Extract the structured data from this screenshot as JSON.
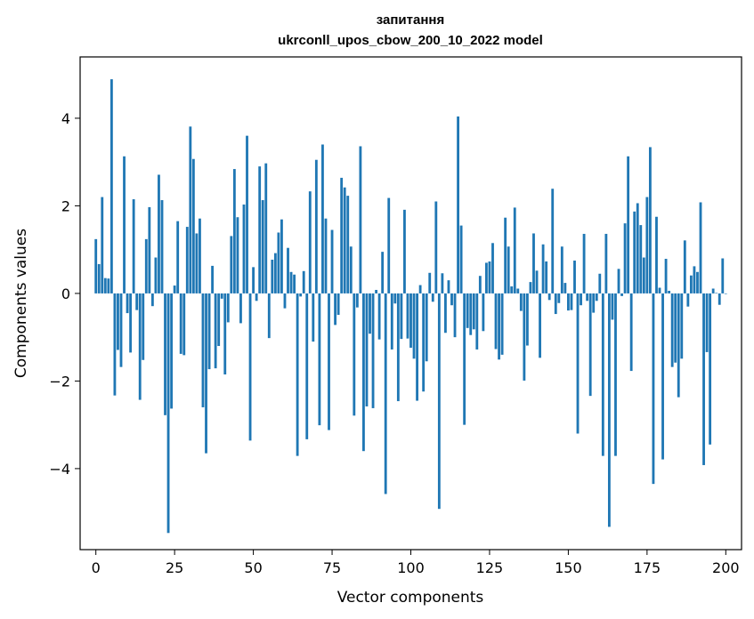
{
  "chart_data": {
    "type": "bar",
    "title": "запитання",
    "subtitle": "ukrconll_upos_cbow_200_10_2022 model",
    "xlabel": "Vector components",
    "ylabel": "Components values",
    "xlim": [
      -5,
      205
    ],
    "ylim": [
      -5.85,
      5.4
    ],
    "xticks": [
      0,
      25,
      50,
      75,
      100,
      125,
      150,
      175,
      200
    ],
    "xtick_labels": [
      "0",
      "25",
      "50",
      "75",
      "100",
      "125",
      "150",
      "175",
      "200"
    ],
    "yticks": [
      4,
      2,
      0,
      -2,
      -4
    ],
    "ytick_labels": [
      "4",
      "2",
      "0",
      "−2",
      "−4"
    ],
    "grid": false,
    "bar_color": "#1f77b4",
    "series": [
      {
        "values": [
          1.24,
          0.67,
          2.2,
          0.35,
          0.34,
          4.89,
          -2.33,
          -1.29,
          -1.68,
          3.13,
          -0.45,
          -1.35,
          2.15,
          -0.38,
          -2.43,
          -1.52,
          1.24,
          1.97,
          -0.29,
          0.82,
          2.71,
          2.13,
          -2.78,
          -5.47,
          -2.63,
          0.18,
          1.65,
          -1.38,
          -1.41,
          1.52,
          3.81,
          3.07,
          1.37,
          1.71,
          -2.6,
          -3.65,
          -1.73,
          0.63,
          -1.71,
          -1.2,
          -0.12,
          -1.85,
          -0.66,
          1.31,
          2.84,
          1.74,
          -0.68,
          2.03,
          3.6,
          -3.36,
          0.6,
          -0.17,
          2.9,
          2.13,
          2.97,
          -1.02,
          0.77,
          0.92,
          1.39,
          1.69,
          -0.34,
          1.04,
          0.49,
          0.43,
          -3.71,
          -0.07,
          0.51,
          -3.33,
          2.33,
          -1.1,
          3.05,
          -3.01,
          3.4,
          1.71,
          -3.12,
          1.45,
          -0.72,
          -0.49,
          2.64,
          2.42,
          2.23,
          1.07,
          -2.79,
          -0.32,
          3.36,
          -3.6,
          -2.58,
          -0.92,
          -2.62,
          0.08,
          -1.05,
          0.95,
          -4.58,
          2.18,
          -1.28,
          -0.23,
          -2.46,
          -1.04,
          1.91,
          -1.03,
          -1.24,
          -1.49,
          -2.45,
          0.19,
          -2.24,
          -1.55,
          0.47,
          -0.19,
          2.1,
          -4.92,
          0.46,
          -0.9,
          0.3,
          -0.27,
          -1.0,
          4.04,
          1.55,
          -3.0,
          -0.79,
          -0.95,
          -0.82,
          -1.28,
          0.4,
          -0.86,
          0.7,
          0.73,
          1.15,
          -1.27,
          -1.51,
          -1.4,
          1.73,
          1.07,
          0.16,
          1.96,
          0.11,
          -0.4,
          -1.99,
          -1.19,
          0.26,
          1.37,
          0.52,
          -1.47,
          1.12,
          0.73,
          -0.15,
          2.39,
          -0.47,
          -0.22,
          1.07,
          0.24,
          -0.39,
          -0.38,
          0.75,
          -3.2,
          -0.27,
          1.36,
          -0.17,
          -2.34,
          -0.44,
          -0.17,
          0.45,
          -3.71,
          1.36,
          -5.33,
          -0.6,
          -3.71,
          0.56,
          -0.06,
          1.6,
          3.13,
          -1.77,
          1.87,
          2.06,
          1.56,
          0.82,
          2.2,
          3.34,
          -4.35,
          1.75,
          0.13,
          -3.79,
          0.79,
          0.06,
          -1.68,
          -1.58,
          -2.37,
          -1.49,
          1.21,
          -0.3,
          0.41,
          0.62,
          0.49,
          2.08,
          -3.92,
          -1.34,
          -3.45,
          0.11,
          0.01,
          -0.26,
          0.8,
          -0.01
        ]
      }
    ]
  }
}
